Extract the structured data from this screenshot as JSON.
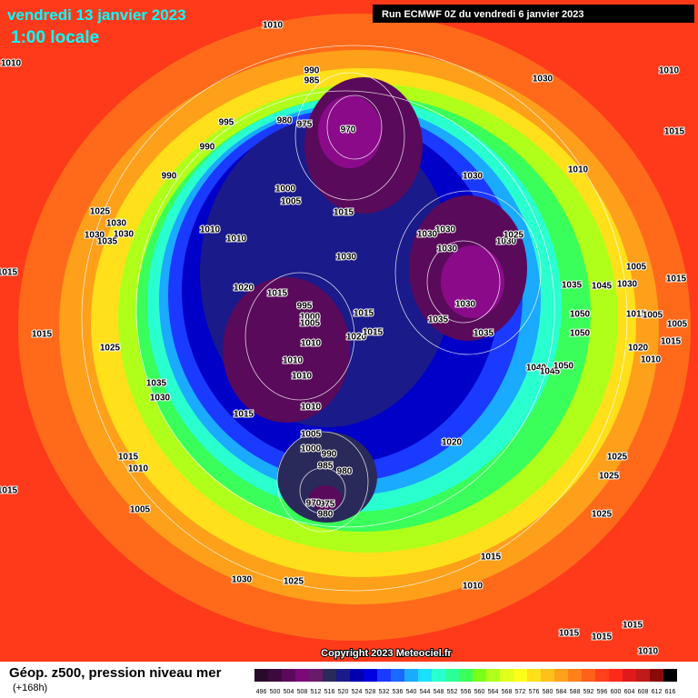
{
  "header": {
    "date": "vendredi 13 janvier 2023",
    "time": "1:00 locale",
    "run": "Run ECMWF 0Z du vendredi 6 janvier 2023"
  },
  "copyright": "Copyright 2023 Meteociel.fr",
  "footer": {
    "title": "Géop. z500, pression niveau mer",
    "lead": "(+168h)"
  },
  "legend": {
    "values": [
      496,
      500,
      504,
      508,
      512,
      516,
      520,
      524,
      528,
      532,
      536,
      540,
      544,
      548,
      552,
      556,
      560,
      564,
      568,
      572,
      576,
      580,
      584,
      588,
      592,
      596,
      600,
      604,
      608,
      612,
      616
    ],
    "colors": [
      "#2a0a2a",
      "#3d0a3d",
      "#5a0a5a",
      "#7a0a7a",
      "#6a1a6a",
      "#2a2a5a",
      "#1a1a8a",
      "#0000b0",
      "#0000e0",
      "#1a3aff",
      "#1a6aff",
      "#1aaaff",
      "#1ae0ff",
      "#2affd0",
      "#2aff9a",
      "#3aff5a",
      "#7aff1a",
      "#b0ff1a",
      "#e0ff1a",
      "#ffff1a",
      "#ffe01a",
      "#ffc01a",
      "#ffa01a",
      "#ff801a",
      "#ff601a",
      "#ff401a",
      "#ff2a1a",
      "#e01a1a",
      "#c01a1a",
      "#8a0a0a",
      "#000000"
    ]
  },
  "isobar_labels": [
    1010,
    1010,
    990,
    985,
    1030,
    1010,
    995,
    980,
    975,
    970,
    1015,
    990,
    990,
    1030,
    1010,
    1000,
    1005,
    1015,
    1025,
    1030,
    1030,
    1030,
    1035,
    1010,
    1010,
    1030,
    1030,
    1030,
    1030,
    1025,
    1030,
    1015,
    1005,
    1015,
    1020,
    1015,
    995,
    1000,
    1005,
    1035,
    1045,
    1030,
    1030,
    1015,
    1050,
    1015,
    1005,
    1005,
    1015,
    1020,
    1015,
    1010,
    1035,
    1035,
    1050,
    1025,
    1020,
    1015,
    1010,
    1010,
    1010,
    1040,
    1045,
    1050,
    1035,
    1030,
    1010,
    1015,
    1005,
    1020,
    1000,
    990,
    985,
    980,
    1015,
    1010,
    1025,
    1025,
    1015,
    975,
    970,
    980,
    1005,
    1025,
    1015,
    1030,
    1025,
    1010,
    1015,
    1015,
    1015,
    1010
  ]
}
